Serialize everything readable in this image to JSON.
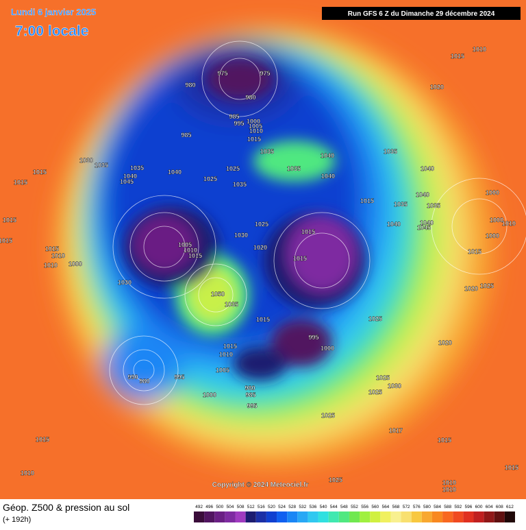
{
  "header": {
    "date": "Lundi 6 janvier 2025",
    "time": "7:00 locale",
    "run": "Run GFS 6 Z du Dimanche 29 décembre 2024"
  },
  "map": {
    "copyright": "Copyright © 2024 Meteociel.fr",
    "isobar_labels": [
      "975",
      "975",
      "980",
      "980",
      "985",
      "995",
      "1000",
      "1005",
      "1010",
      "985",
      "1015",
      "1035",
      "1035",
      "1040",
      "1040",
      "1035",
      "1040",
      "1025",
      "1025",
      "1035",
      "1040",
      "1035",
      "1030",
      "1035",
      "1040",
      "1045",
      "1015",
      "1015",
      "1015",
      "1015",
      "1015",
      "1010",
      "1000",
      "1010",
      "1005",
      "1010",
      "1015",
      "1030",
      "1025",
      "1020",
      "1015",
      "1015",
      "1015",
      "1035",
      "1040",
      "1035",
      "1040",
      "1040",
      "1045",
      "1030",
      "1050",
      "1035",
      "1015",
      "1015",
      "1010",
      "995",
      "1000",
      "1025",
      "1005",
      "995",
      "980",
      "990",
      "1000",
      "980",
      "985",
      "995",
      "1025",
      "1025",
      "1030",
      "1025",
      "1017",
      "1015",
      "1015",
      "1010",
      "1025",
      "1010",
      "1010",
      "1015",
      "1020",
      "1010",
      "1015",
      "1000",
      "1000",
      "1010",
      "1000",
      "1015",
      "1020",
      "1025",
      "1020"
    ]
  },
  "footer": {
    "title": "Géop. Z500 & pression au sol",
    "subtitle": "(+ 192h)"
  },
  "legend": {
    "levels": [
      492,
      496,
      500,
      504,
      508,
      512,
      516,
      520,
      524,
      528,
      532,
      536,
      540,
      544,
      548,
      552,
      556,
      560,
      564,
      568,
      572,
      576,
      580,
      584,
      588,
      592,
      596,
      600,
      604,
      608,
      612
    ],
    "colors": [
      "#3a0d3a",
      "#511560",
      "#6a1f84",
      "#7e2ba1",
      "#a03bc0",
      "#1c1c70",
      "#1b2fa6",
      "#1040d0",
      "#1060f0",
      "#1a86f5",
      "#28a8f5",
      "#30c8f0",
      "#30e0e0",
      "#40e8b0",
      "#50e880",
      "#70e850",
      "#a0f040",
      "#d0f040",
      "#f0f060",
      "#f8f090",
      "#f8e070",
      "#f8c840",
      "#f8a830",
      "#f88820",
      "#f86820",
      "#f04a20",
      "#e03020",
      "#c02020",
      "#901818",
      "#601010",
      "#200808"
    ]
  }
}
